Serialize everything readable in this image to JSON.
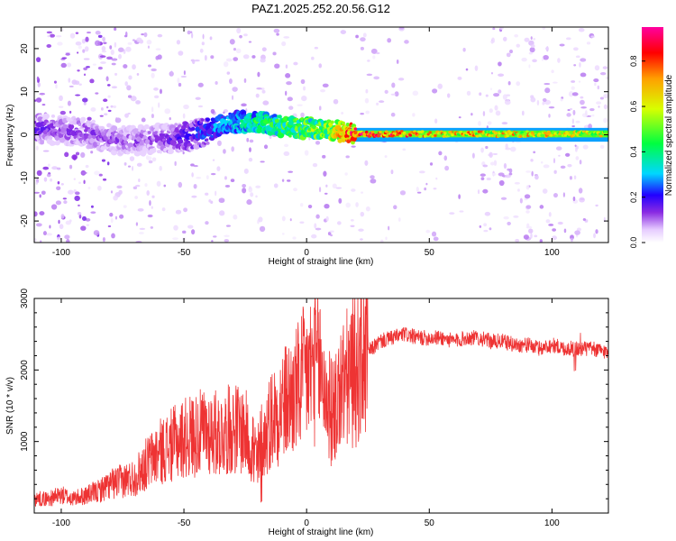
{
  "figure_title": "PAZ1.2025.252.20.56.G12",
  "chart_data": [
    {
      "type": "heatmap",
      "title": "PAZ1.2025.252.20.56.G12",
      "xlabel": "Height of straight line (km)",
      "ylabel": "Frequency (Hz)",
      "xlim": [
        -111,
        123
      ],
      "ylim": [
        -25,
        25
      ],
      "xticks": [
        -100,
        -50,
        0,
        50,
        100
      ],
      "yticks": [
        -20,
        -10,
        0,
        10,
        20
      ],
      "grid": false,
      "colorbar": {
        "label": "Normalized spectral amplitude",
        "range": [
          0.0,
          0.95
        ],
        "ticks": [
          0.0,
          0.2,
          0.4,
          0.6,
          0.8
        ],
        "colors": [
          "#ffffff",
          "#e6ccff",
          "#8a2be2",
          "#2200ff",
          "#00d7ff",
          "#00ff40",
          "#d8ff00",
          "#ffa000",
          "#ff0000",
          "#ff00a0"
        ]
      },
      "ridge": {
        "description_points_height_km": [
          -111,
          -100,
          -90,
          -80,
          -70,
          -60,
          -50,
          -40,
          -30,
          -20,
          -10,
          0,
          10,
          20,
          30,
          50,
          80,
          100,
          123
        ],
        "frequency_hz": [
          1.5,
          1.0,
          0.5,
          -1.0,
          -1.5,
          -1.0,
          -0.5,
          1.0,
          3.0,
          3.0,
          2.0,
          1.5,
          1.0,
          0.3,
          0.2,
          0.2,
          0.2,
          0.2,
          0.2
        ],
        "amplitude": [
          0.18,
          0.15,
          0.16,
          0.14,
          0.14,
          0.15,
          0.2,
          0.28,
          0.35,
          0.45,
          0.5,
          0.55,
          0.6,
          0.95,
          0.9,
          0.78,
          0.72,
          0.7,
          0.68
        ]
      }
    },
    {
      "type": "line",
      "title": "",
      "xlabel": "Height of straight line (km)",
      "ylabel": "SNR (10 * v/v)",
      "xlim": [
        -111,
        123
      ],
      "ylim": [
        0,
        3000
      ],
      "xticks": [
        -100,
        -50,
        0,
        50,
        100
      ],
      "yticks": [
        1000,
        2000,
        3000
      ],
      "grid": false,
      "series": [
        {
          "name": "SNR",
          "color": "#ee3333",
          "x": [
            -111,
            -105,
            -100,
            -95,
            -90,
            -85,
            -80,
            -75,
            -70,
            -65,
            -60,
            -55,
            -50,
            -45,
            -40,
            -35,
            -30,
            -25,
            -20,
            -15,
            -10,
            -5,
            0,
            5,
            10,
            15,
            20,
            25,
            30,
            35,
            40,
            45,
            50,
            55,
            60,
            65,
            70,
            75,
            80,
            85,
            90,
            95,
            100,
            105,
            110,
            115,
            123
          ],
          "y": [
            200,
            200,
            250,
            200,
            250,
            300,
            400,
            450,
            500,
            700,
            850,
            950,
            1050,
            1100,
            1150,
            1100,
            1200,
            1150,
            650,
            1300,
            1500,
            1650,
            1950,
            2100,
            1400,
            1800,
            2000,
            2250,
            2400,
            2450,
            2500,
            2450,
            2450,
            2450,
            2400,
            2450,
            2450,
            2400,
            2400,
            2350,
            2350,
            2300,
            2350,
            2300,
            2300,
            2300,
            2250
          ]
        }
      ]
    }
  ]
}
